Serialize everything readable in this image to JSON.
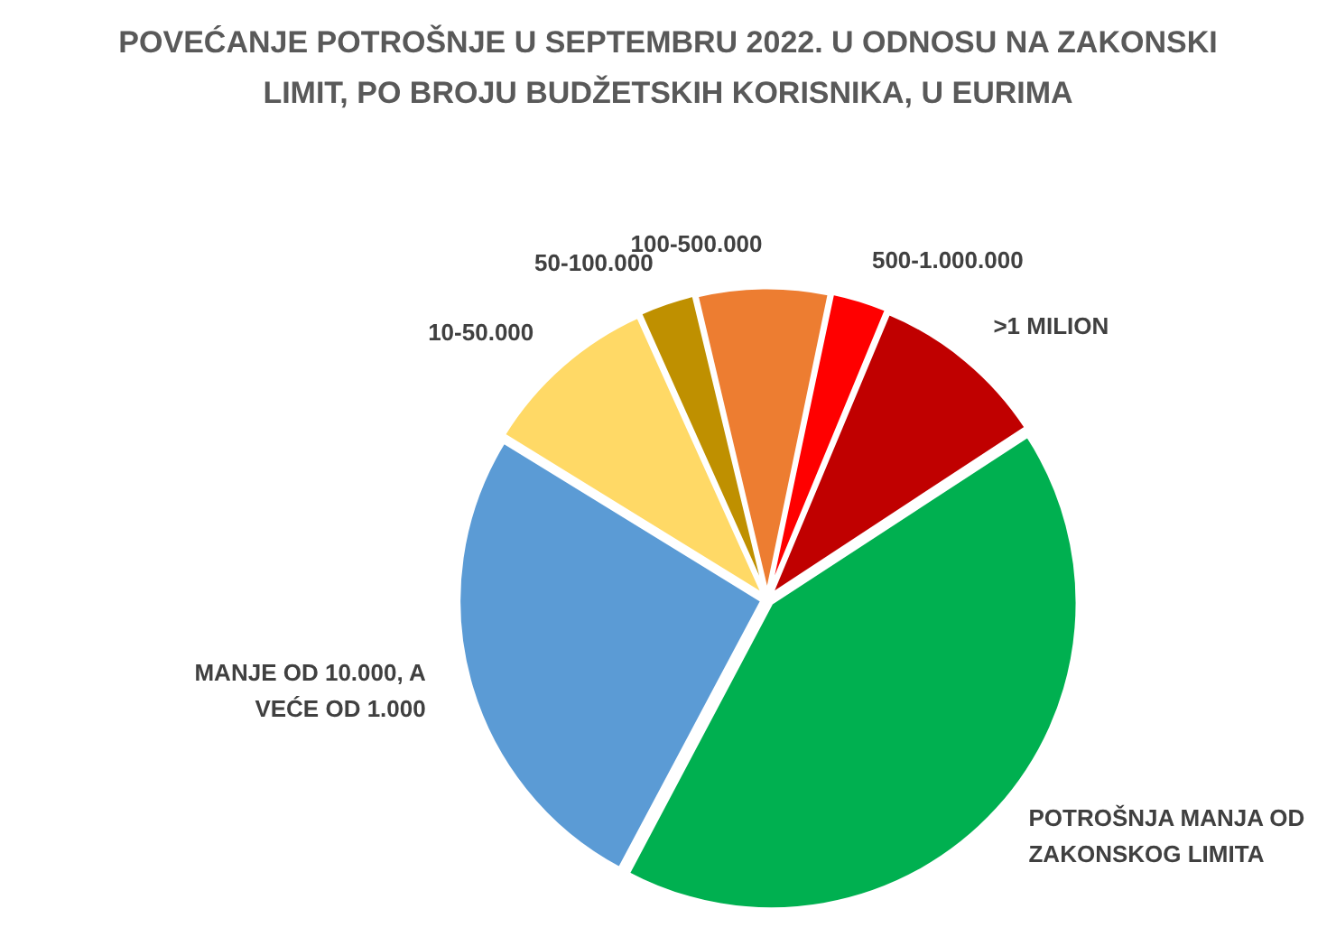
{
  "chart_data": {
    "type": "pie",
    "title": "POVEĆANJE POTROŠNJE U SEPTEMBRU 2022. U ODNOSU NA ZAKONSKI LIMIT, PO BROJU BUDŽETSKIH KORISNIKA, U EURIMA",
    "categories": [
      "MANJE OD 10.000, A VEĆE OD 1.000",
      "10-50.000",
      "50-100.000",
      "100-500.000",
      "500-1.000.000",
      ">1 MILION",
      "POTROŠNJA MANJA OD ZAKONSKOG LIMITA"
    ],
    "values": [
      26,
      9.5,
      3,
      7,
      3,
      9.5,
      42
    ],
    "colors": [
      "#5b9bd5",
      "#ffd966",
      "#bf9000",
      "#ed7d31",
      "#ff0000",
      "#c00000",
      "#00b050"
    ]
  }
}
